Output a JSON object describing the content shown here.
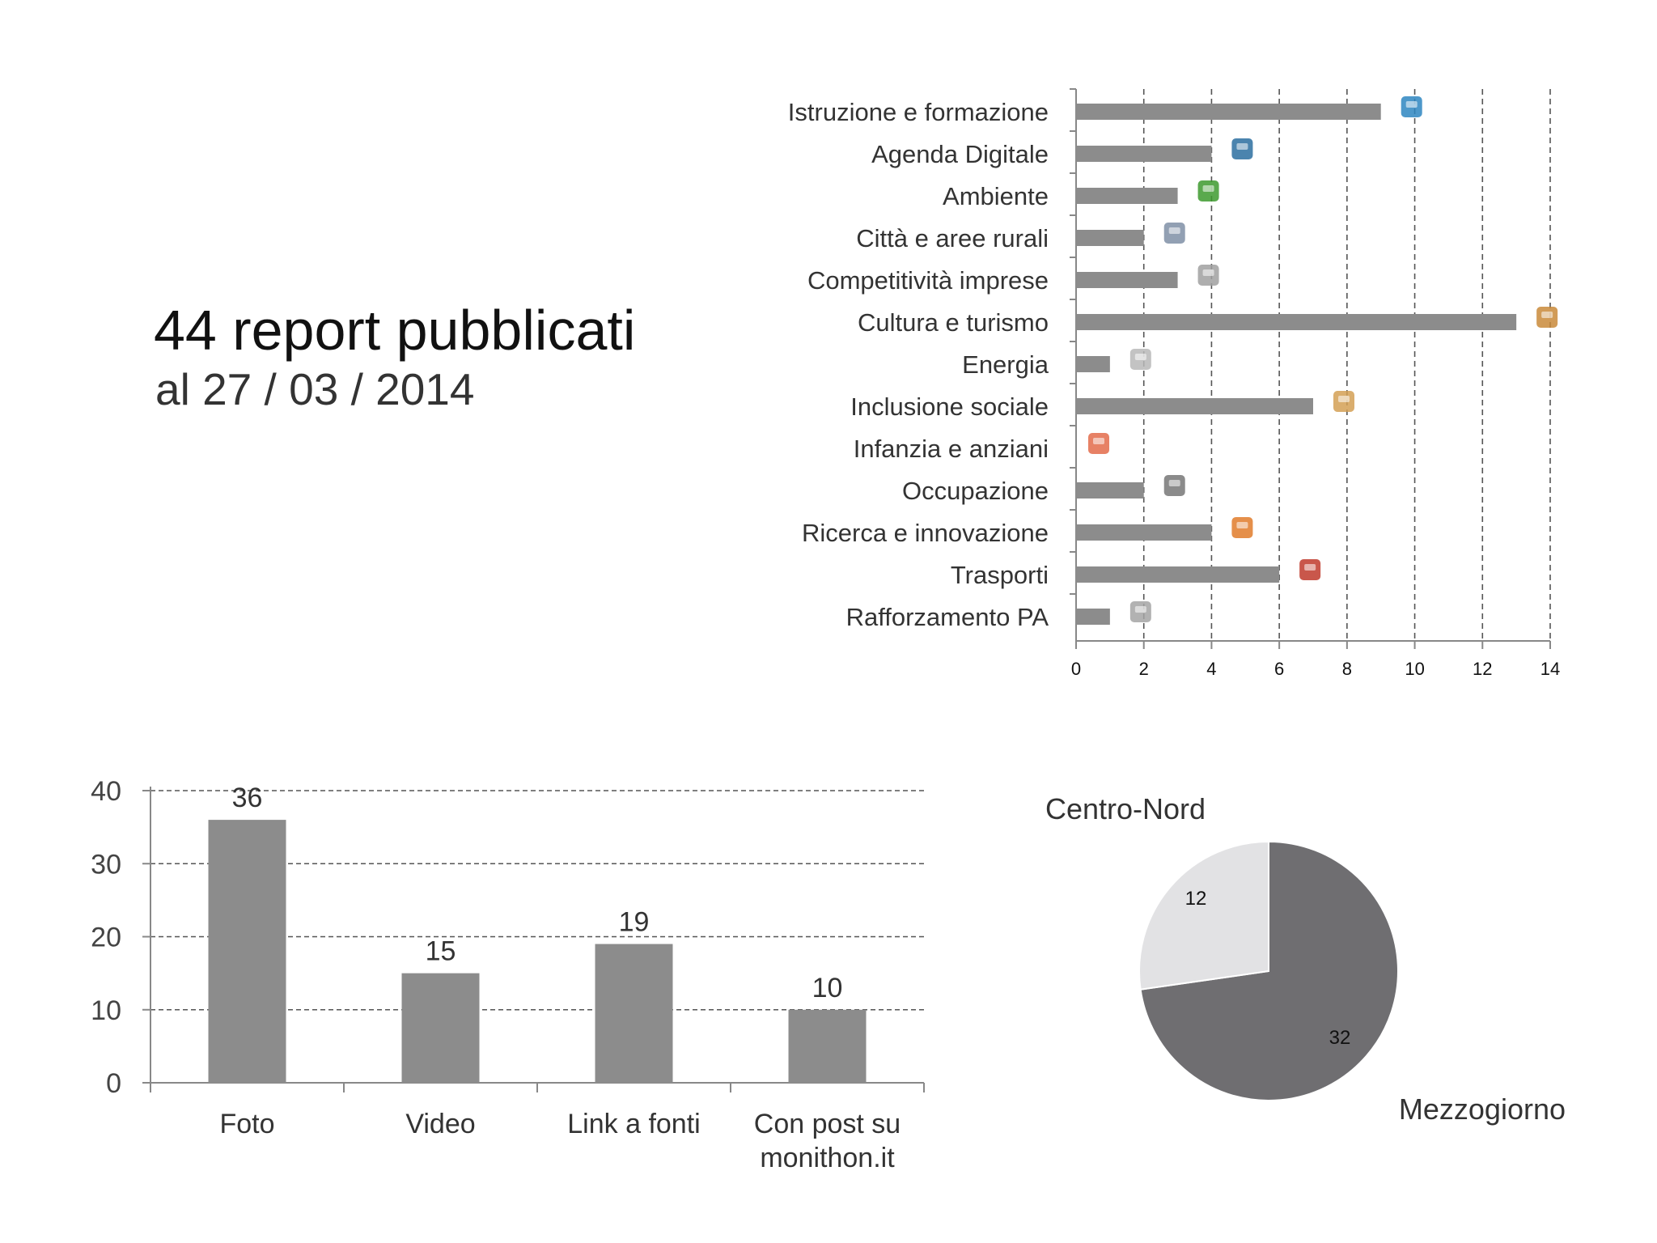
{
  "header": {
    "title": "44 report pubblicati",
    "subtitle": "al 27 / 03 / 2014"
  },
  "chart_data": [
    {
      "type": "bar",
      "orientation": "horizontal",
      "categories": [
        "Istruzione e formazione",
        "Agenda Digitale",
        "Ambiente",
        "Città e aree rurali",
        "Competitività imprese",
        "Cultura e turismo",
        "Energia",
        "Inclusione sociale",
        "Infanzia e anziani",
        "Occupazione",
        "Ricerca e innovazione",
        "Trasporti",
        "Rafforzamento PA"
      ],
      "values": [
        9,
        4,
        3,
        2,
        3,
        13,
        1,
        7,
        0,
        2,
        4,
        6,
        1
      ],
      "icons": [
        "books-icon",
        "laptop-icon",
        "tree-icon",
        "city-icon",
        "factory-icon",
        "palette-icon",
        "safe-icon",
        "people-icon",
        "girl-icon",
        "wrench-icon",
        "flask-icon",
        "train-icon",
        "building-icon"
      ],
      "xlim": [
        0,
        14
      ],
      "xticks": [
        "0",
        "2",
        "4",
        "6",
        "8",
        "10",
        "12",
        "14"
      ],
      "grid": "vertical dashed",
      "bar_color": "#8c8c8c"
    },
    {
      "type": "bar",
      "categories": [
        "Foto",
        "Video",
        "Link a fonti",
        "Con post su monithon.it"
      ],
      "category_lines": [
        [
          "Foto"
        ],
        [
          "Video"
        ],
        [
          "Link a fonti"
        ],
        [
          "Con post su",
          "monithon.it"
        ]
      ],
      "values": [
        36,
        15,
        19,
        10
      ],
      "value_labels": [
        "36",
        "15",
        "19",
        "10"
      ],
      "ylim": [
        0,
        40
      ],
      "yticks": [
        "0",
        "10",
        "20",
        "30",
        "40"
      ],
      "grid": "horizontal dashed",
      "bar_color": "#8c8c8c"
    },
    {
      "type": "pie",
      "slices": [
        {
          "label": "Centro-Nord",
          "value": 12,
          "value_label": "12",
          "color": "#e2e2e4"
        },
        {
          "label": "Mezzogiorno",
          "value": 32,
          "value_label": "32",
          "color": "#6f6e71"
        }
      ]
    }
  ]
}
